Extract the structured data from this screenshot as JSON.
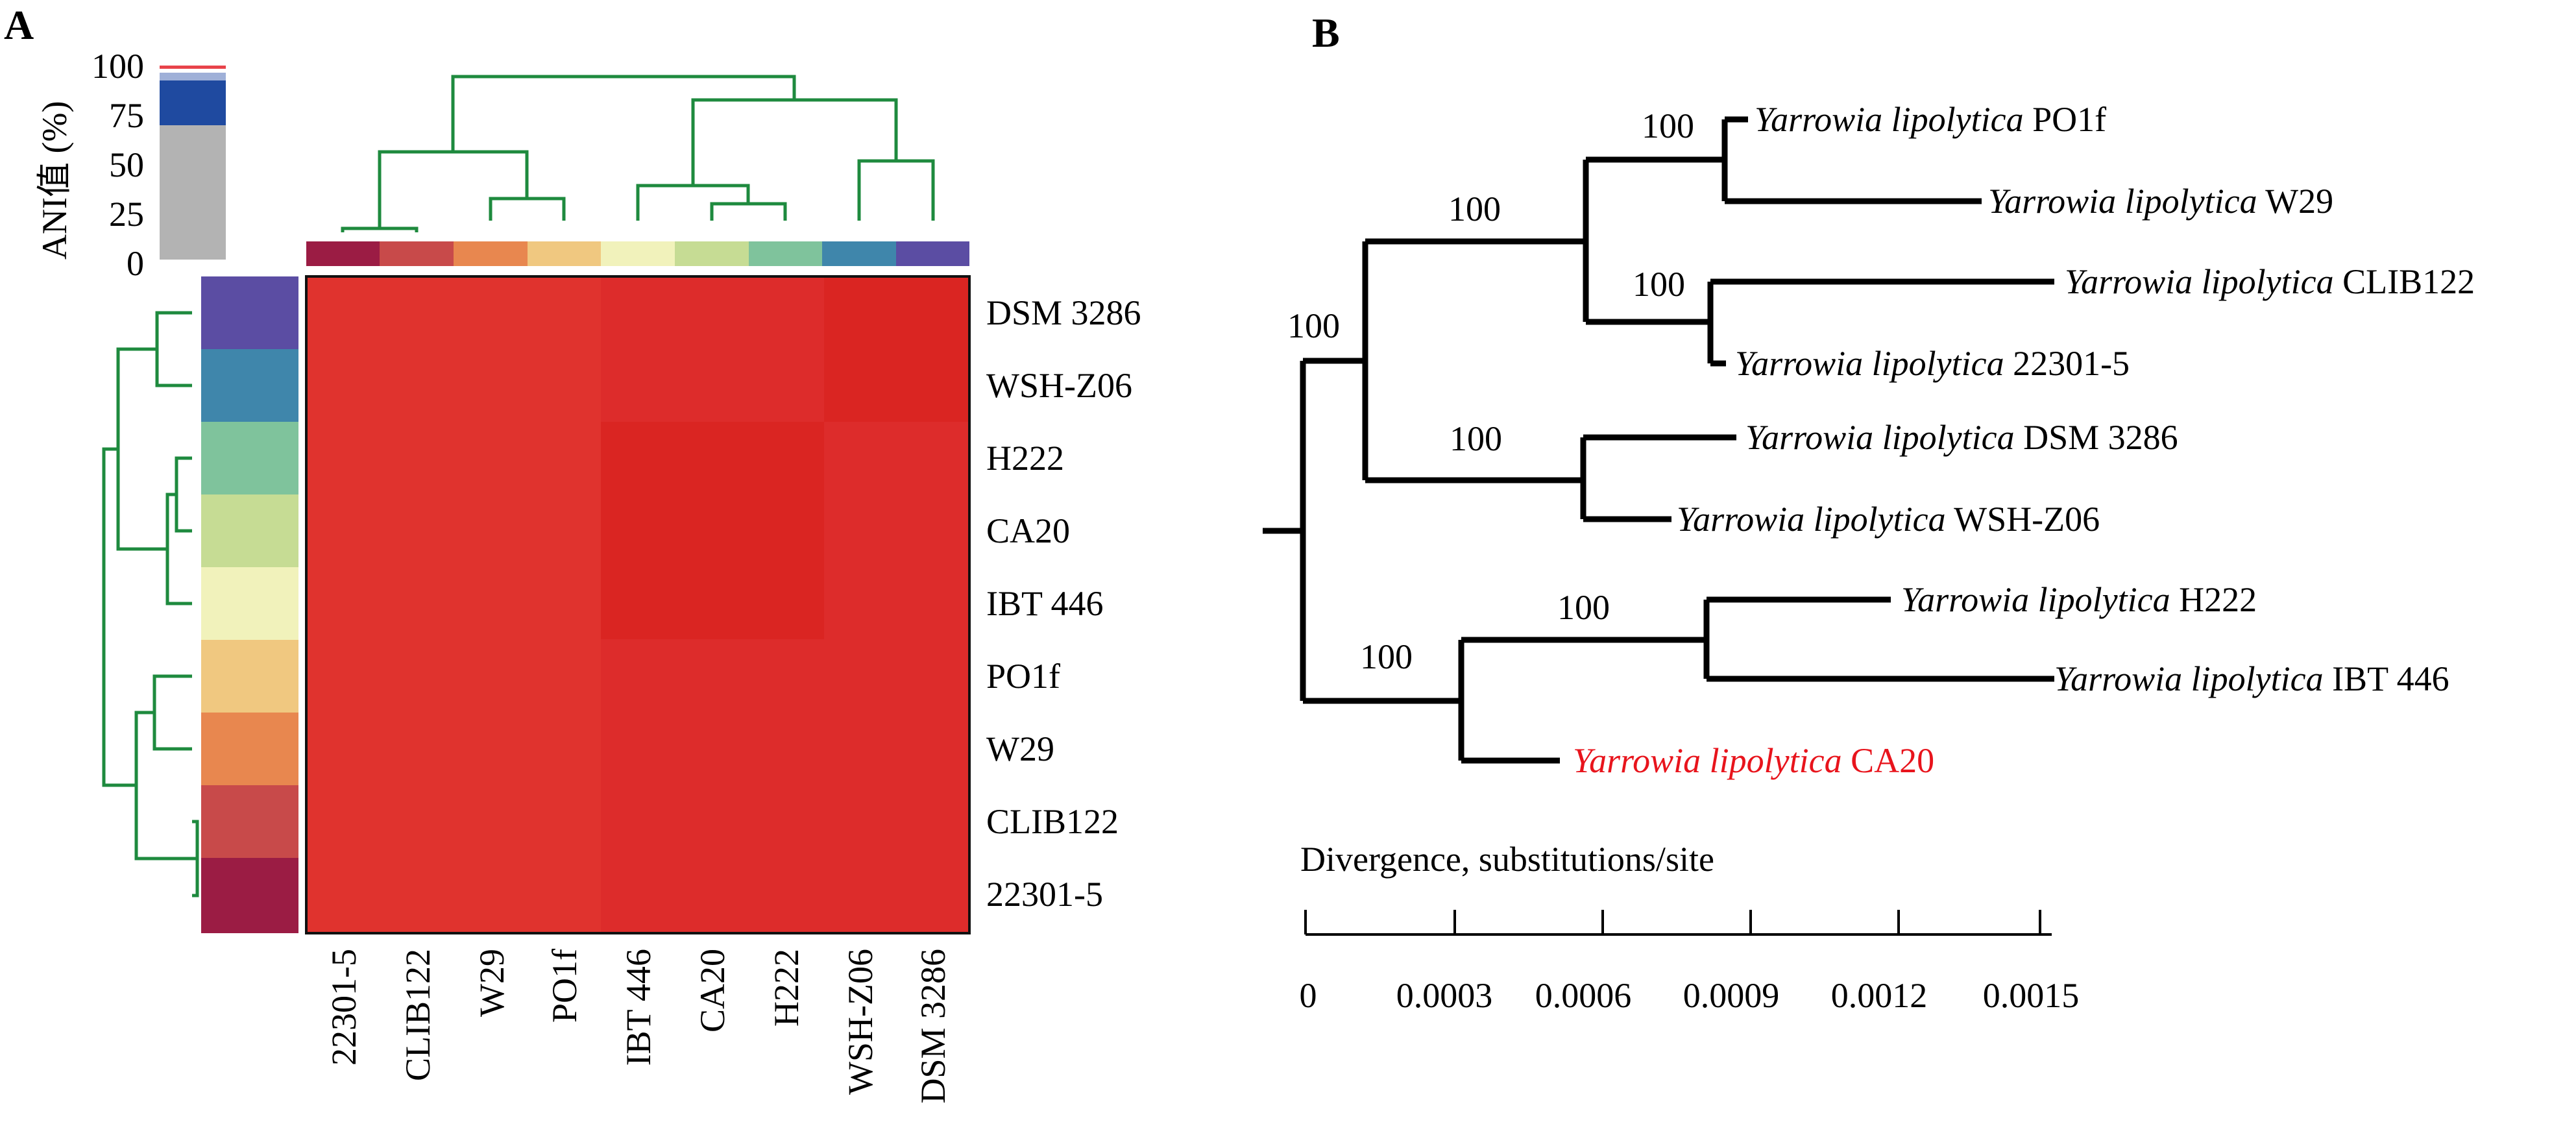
{
  "panel_a": {
    "label": "A",
    "legend": {
      "title": "ANI值 (%)",
      "ticks": [
        "100",
        "75",
        "50",
        "25",
        "0"
      ],
      "colors": {
        "red": "#e8434a",
        "white": "#ffffff",
        "blue": "#1f4aa0",
        "grey": "#b3b3b3"
      }
    },
    "order": [
      "22301-5",
      "CLIB122",
      "W29",
      "PO1f",
      "IBT 446",
      "CA20",
      "H222",
      "WSH-Z06",
      "DSM 3286"
    ],
    "row_order": [
      "DSM 3286",
      "WSH-Z06",
      "H222",
      "CA20",
      "IBT 446",
      "PO1f",
      "W29",
      "CLIB122",
      "22301-5"
    ],
    "strain_colors": {
      "22301-5": "#9b1c44",
      "CLIB122": "#c84a4a",
      "W29": "#e8874f",
      "PO1f": "#f0c880",
      "IBT 446": "#f1f2bb",
      "CA20": "#c6dc94",
      "H222": "#7fc39c",
      "WSH-Z06": "#3f86ab",
      "DSM 3286": "#5b4da3"
    },
    "heatmap_colors": {
      "base": "#e0332e",
      "lower_right": "#dd2c2b",
      "upper_right": "#da2522"
    }
  },
  "panel_b": {
    "label": "B",
    "genus_species": "Yarrowia lipolytica",
    "highlight_color": "#e8141c",
    "taxa": [
      {
        "id": "po1f",
        "strain": "PO1f",
        "highlight": false
      },
      {
        "id": "w29",
        "strain": "W29",
        "highlight": false
      },
      {
        "id": "clib122",
        "strain": "CLIB122",
        "highlight": false
      },
      {
        "id": "s22301",
        "strain": "22301-5",
        "highlight": false
      },
      {
        "id": "dsm3286",
        "strain": "DSM 3286",
        "highlight": false
      },
      {
        "id": "wshz06",
        "strain": "WSH-Z06",
        "highlight": false
      },
      {
        "id": "h222",
        "strain": "H222",
        "highlight": false
      },
      {
        "id": "ibt446",
        "strain": "IBT 446",
        "highlight": false
      },
      {
        "id": "ca20",
        "strain": "CA20",
        "highlight": true
      }
    ],
    "bootstrap": [
      "100",
      "100",
      "100",
      "100",
      "100",
      "100",
      "100"
    ],
    "scale": {
      "title": "Divergence, substitutions/site",
      "ticks": [
        "0",
        "0.0003",
        "0.0006",
        "0.0009",
        "0.0012",
        "0.0015"
      ]
    }
  }
}
